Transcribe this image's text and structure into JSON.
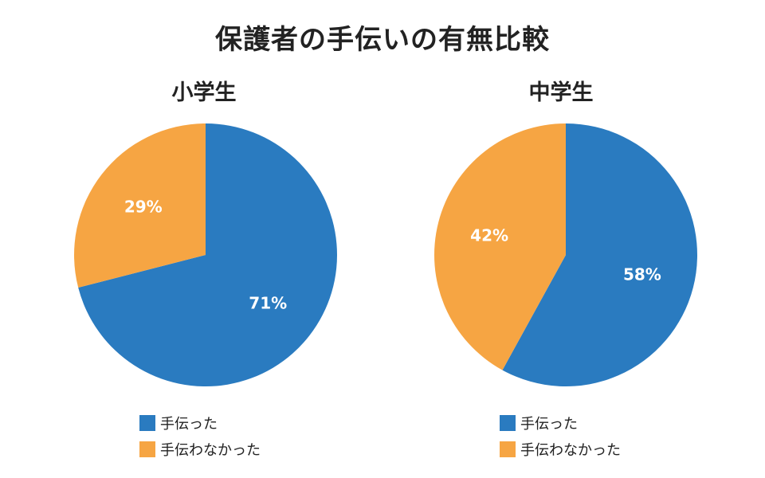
{
  "title": "保護者の手伝いの有無比較",
  "colors": {
    "helped": "#2a7bc0",
    "not_helped": "#f6a543"
  },
  "chart_data": [
    {
      "type": "pie",
      "title": "小学生",
      "categories": [
        "手伝った",
        "手伝わなかった"
      ],
      "values": [
        71,
        29
      ],
      "value_labels": [
        "71%",
        "29%"
      ],
      "legend": [
        "手伝った",
        "手伝わなかった"
      ]
    },
    {
      "type": "pie",
      "title": "中学生",
      "categories": [
        "手伝った",
        "手伝わなかった"
      ],
      "values": [
        58,
        42
      ],
      "value_labels": [
        "58%",
        "42%"
      ],
      "legend": [
        "手伝った",
        "手伝わなかった"
      ]
    }
  ]
}
